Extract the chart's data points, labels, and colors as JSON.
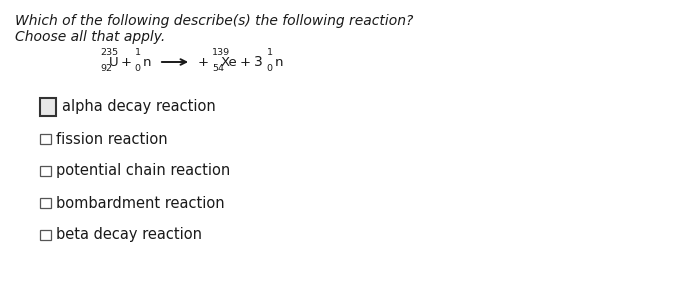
{
  "title_line1": "Which of the following describe(s) the following reaction?",
  "title_line2": "Choose all that apply.",
  "background_color": "#ffffff",
  "options": [
    {
      "text": "alpha decay reaction",
      "checked": true,
      "big_box": true
    },
    {
      "text": "fission reaction",
      "checked": false,
      "big_box": false
    },
    {
      "text": "potential chain reaction",
      "checked": false,
      "big_box": false
    },
    {
      "text": "bombardment reaction",
      "checked": false,
      "big_box": false
    },
    {
      "text": "beta decay reaction",
      "checked": false,
      "big_box": false
    }
  ],
  "equation": {
    "reactant1_mass": "235",
    "reactant1_atomic": "92",
    "reactant1_symbol": "U",
    "reactant2_mass": "1",
    "reactant2_atomic": "0",
    "reactant2_symbol": "n",
    "product1_mass": "139",
    "product1_atomic": "54",
    "product1_symbol": "Xe",
    "product2_coeff": "3",
    "product2_mass": "1",
    "product2_atomic": "0",
    "product2_symbol": "n"
  },
  "text_color": "#1a1a1a",
  "title_fontsize": 10.0,
  "eq_fontsize": 9.5,
  "option_fontsize": 10.5
}
